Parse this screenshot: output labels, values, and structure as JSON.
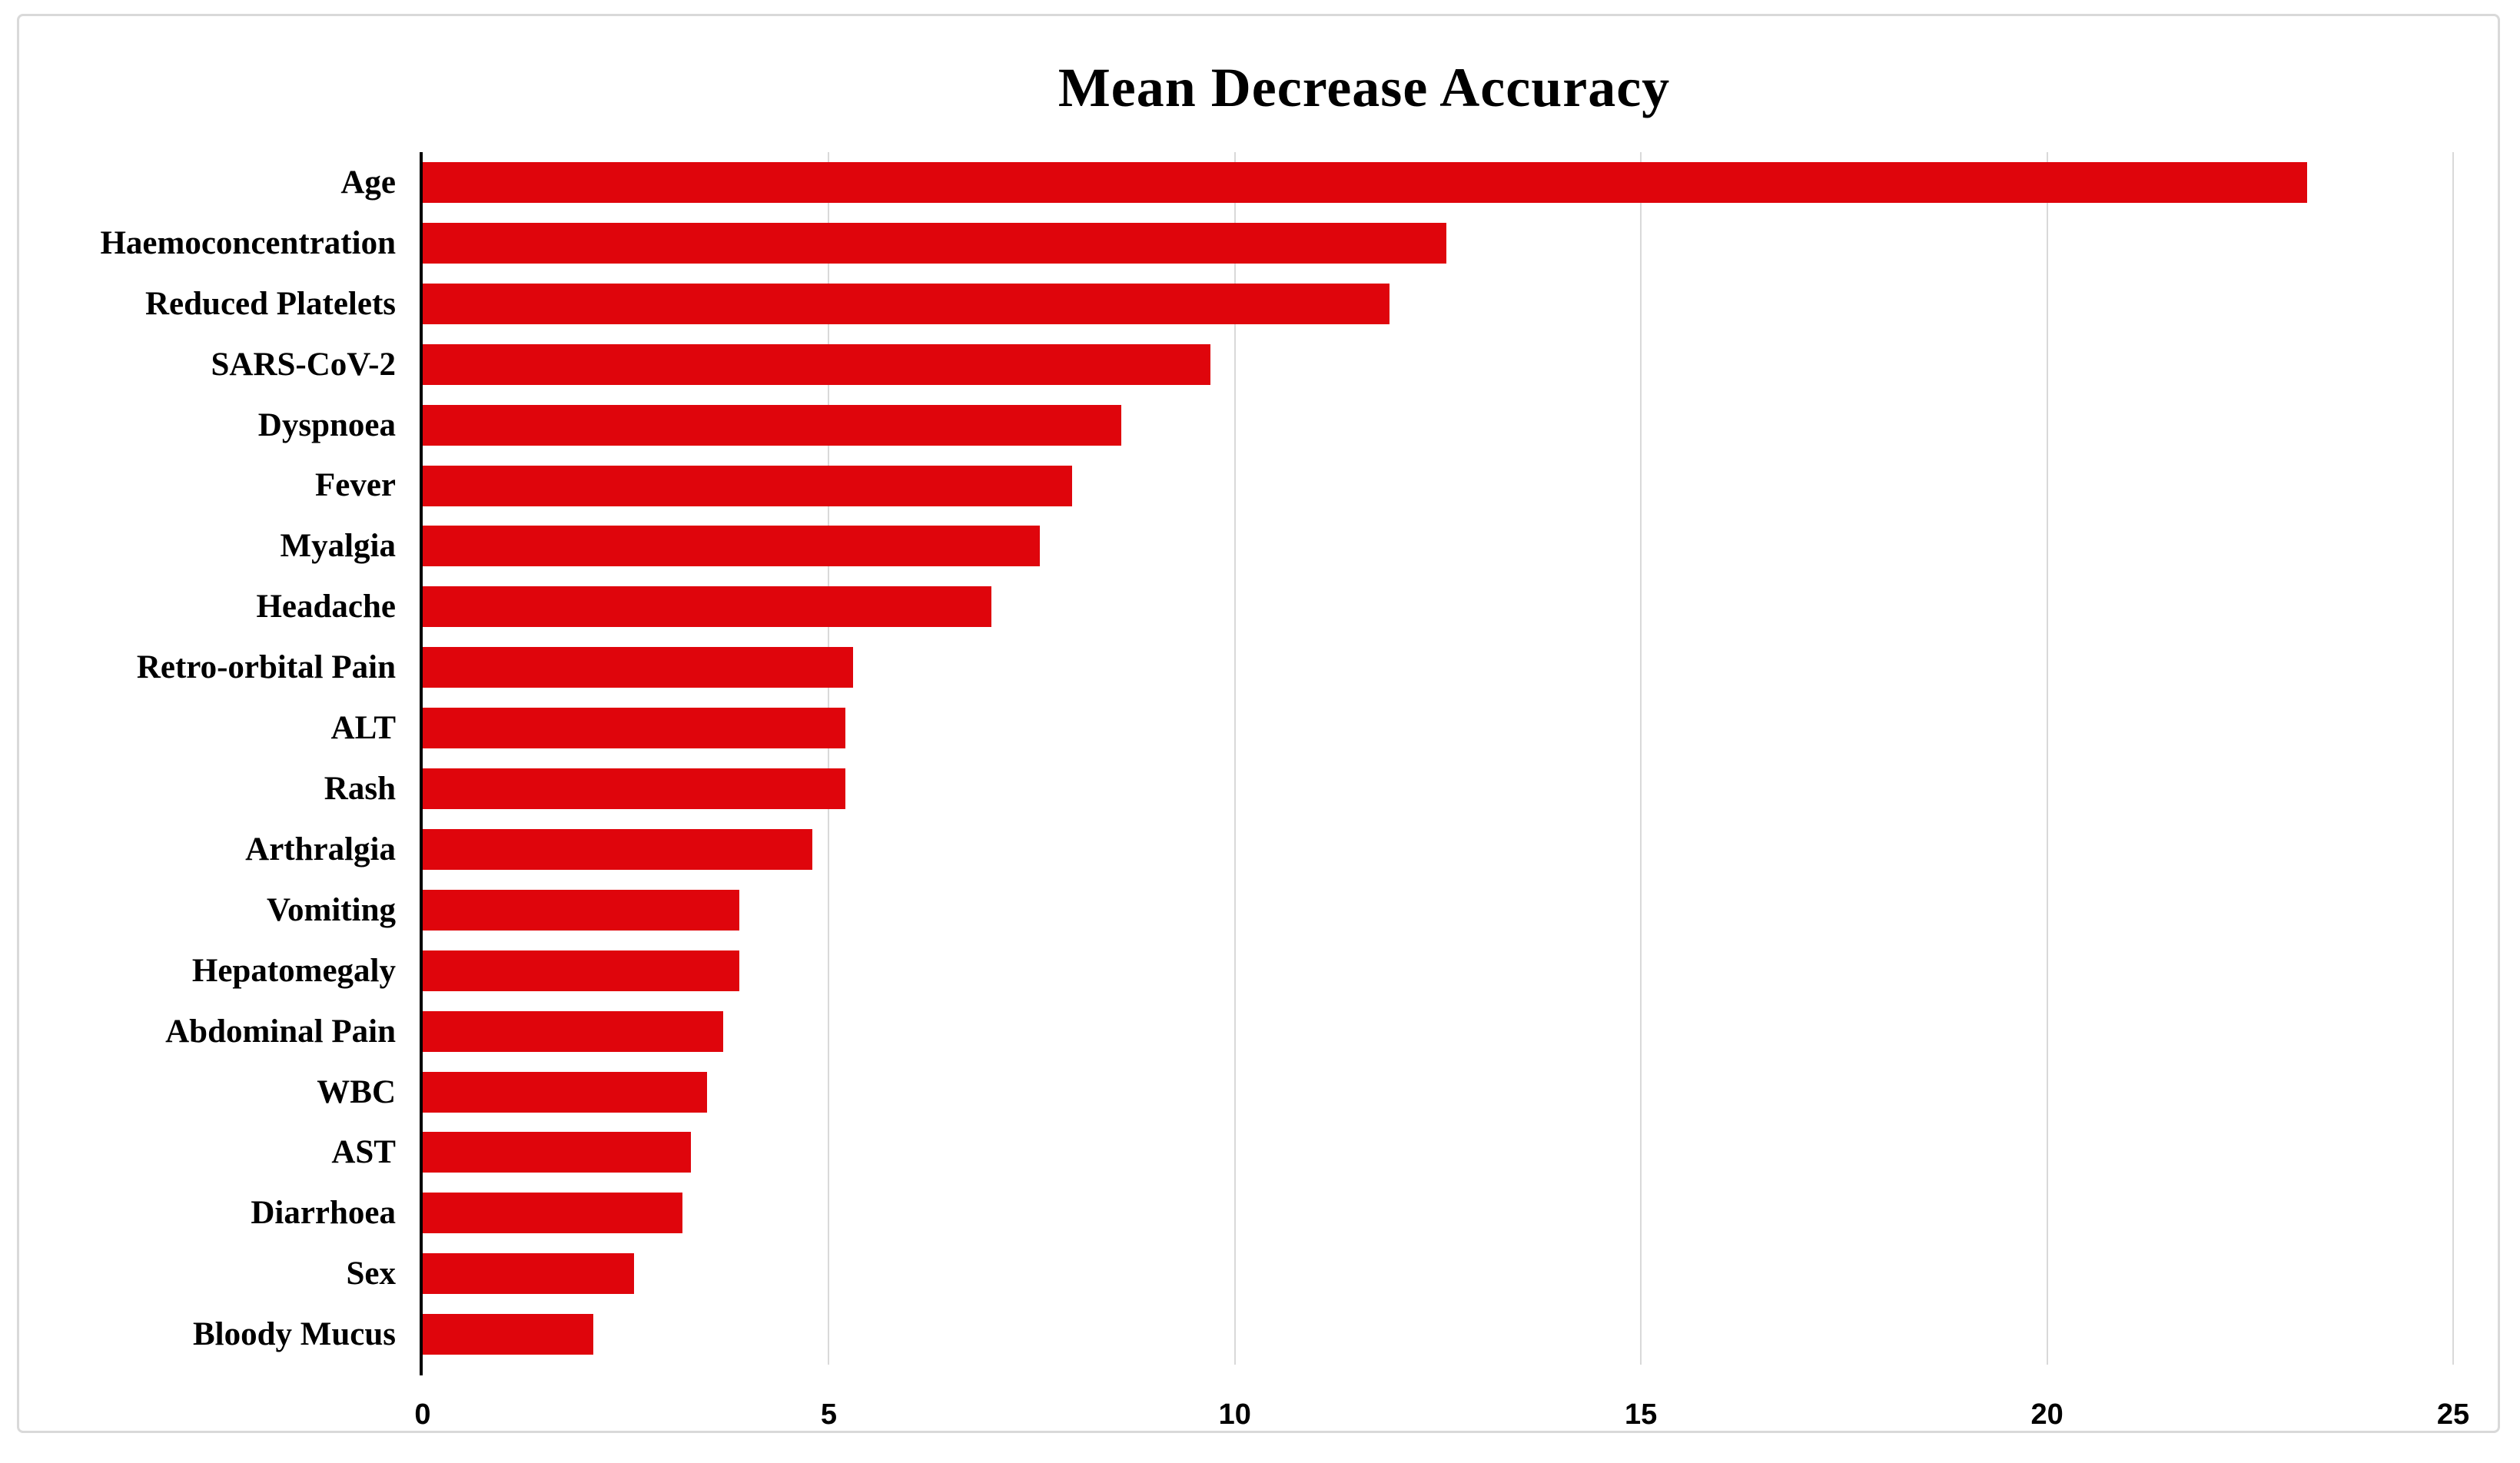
{
  "chart": {
    "title": "Mean Decrease Accuracy"
  },
  "chart_data": {
    "type": "bar",
    "orientation": "horizontal",
    "title": "Mean Decrease Accuracy",
    "categories": [
      "Age",
      "Haemoconcentration",
      "Reduced Platelets",
      "SARS-CoV-2",
      "Dyspnoea",
      "Fever",
      "Myalgia",
      "Headache",
      "Retro-orbital Pain",
      "ALT",
      "Rash",
      "Arthralgia",
      "Vomiting",
      "Hepatomegaly",
      "Abdominal Pain",
      "WBC",
      "AST",
      "Diarrhoea",
      "Sex",
      "Bloody Mucus"
    ],
    "values": [
      23.2,
      12.6,
      11.9,
      9.7,
      8.6,
      8.0,
      7.6,
      7.0,
      5.3,
      5.2,
      5.2,
      4.8,
      3.9,
      3.9,
      3.7,
      3.5,
      3.3,
      3.2,
      2.6,
      2.1
    ],
    "xlabel": "",
    "ylabel": "",
    "xlim": [
      0,
      25
    ],
    "x_ticks": [
      0,
      5,
      10,
      15,
      20,
      25
    ],
    "grid": "vertical-only",
    "legend": "none",
    "bar_color": "#df050c",
    "gridline_color": "#d9d9d9",
    "axis_color": "#000000",
    "frame_border_color": "#d9d9d9",
    "background_color": "#ffffff"
  }
}
